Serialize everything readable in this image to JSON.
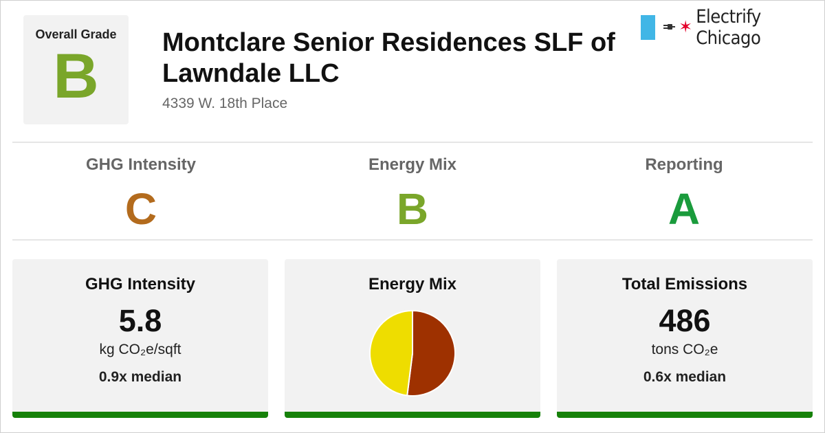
{
  "overall": {
    "label": "Overall Grade",
    "grade": "B",
    "grade_color": "#7aa62a"
  },
  "building": {
    "name": "Montclare Senior Residences SLF of Lawndale LLC",
    "address": "4339 W. 18th Place"
  },
  "brand": {
    "name": "Electrify Chicago",
    "flag_color": "#41b6e6",
    "star_color": "#e4002b"
  },
  "sub_grades": [
    {
      "label": "GHG Intensity",
      "grade": "C",
      "color": "#b36b1d"
    },
    {
      "label": "Energy Mix",
      "grade": "B",
      "color": "#7aa62a"
    },
    {
      "label": "Reporting",
      "grade": "A",
      "color": "#1a9b3c"
    }
  ],
  "cards": {
    "ghg": {
      "title": "GHG Intensity",
      "value": "5.8",
      "unit": "kg CO₂e/sqft",
      "median": "0.9x median"
    },
    "mix": {
      "title": "Energy Mix"
    },
    "total": {
      "title": "Total Emissions",
      "value": "486",
      "unit": "tons CO₂e",
      "median": "0.6x median"
    }
  },
  "chart_data": {
    "type": "pie",
    "slices": [
      {
        "label": "",
        "value": 52,
        "color": "#9e3100"
      },
      {
        "label": "",
        "value": 48,
        "color": "#eedd00"
      }
    ]
  },
  "accent_bar_color": "#16810a"
}
